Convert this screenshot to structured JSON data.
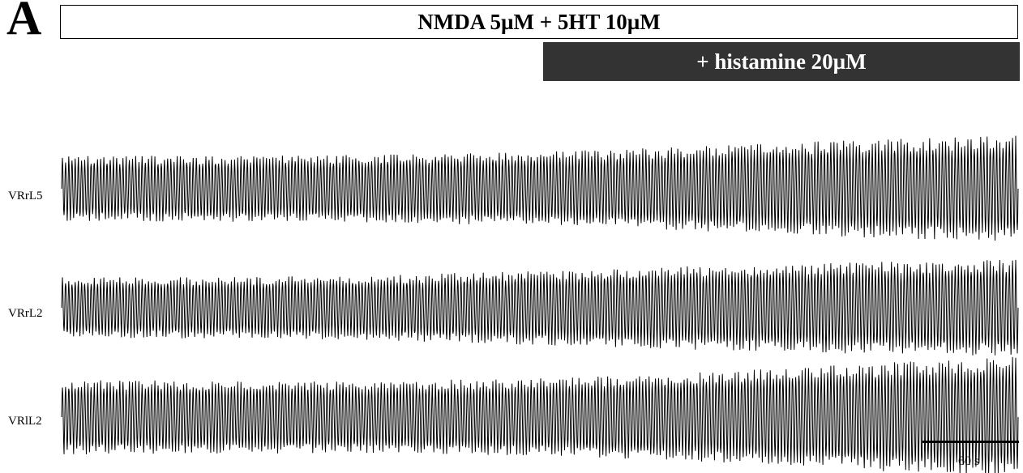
{
  "panel_label": "A",
  "chart_data": {
    "type": "line",
    "title": "",
    "treatments": [
      {
        "label": "NMDA 5µM + 5HT 10µM",
        "style": "open"
      },
      {
        "label": "+ histamine 20µM",
        "style": "filled",
        "color": "#333333"
      }
    ],
    "series": [
      {
        "name": "VRrL5",
        "amplitude_profile": [
          0.62,
          0.62,
          0.64,
          0.7,
          0.8,
          0.92,
          1.0
        ],
        "cycles": 300
      },
      {
        "name": "VRrL2",
        "amplitude_profile": [
          0.62,
          0.62,
          0.66,
          0.76,
          0.86,
          0.93,
          0.98
        ],
        "cycles": 300
      },
      {
        "name": "VRlL2",
        "amplitude_profile": [
          0.62,
          0.6,
          0.6,
          0.64,
          0.74,
          0.88,
          1.0
        ],
        "cycles": 300
      }
    ],
    "scale_bar": {
      "value": 60,
      "unit": "s",
      "label": "60 s"
    },
    "trace_color": "#000000"
  }
}
